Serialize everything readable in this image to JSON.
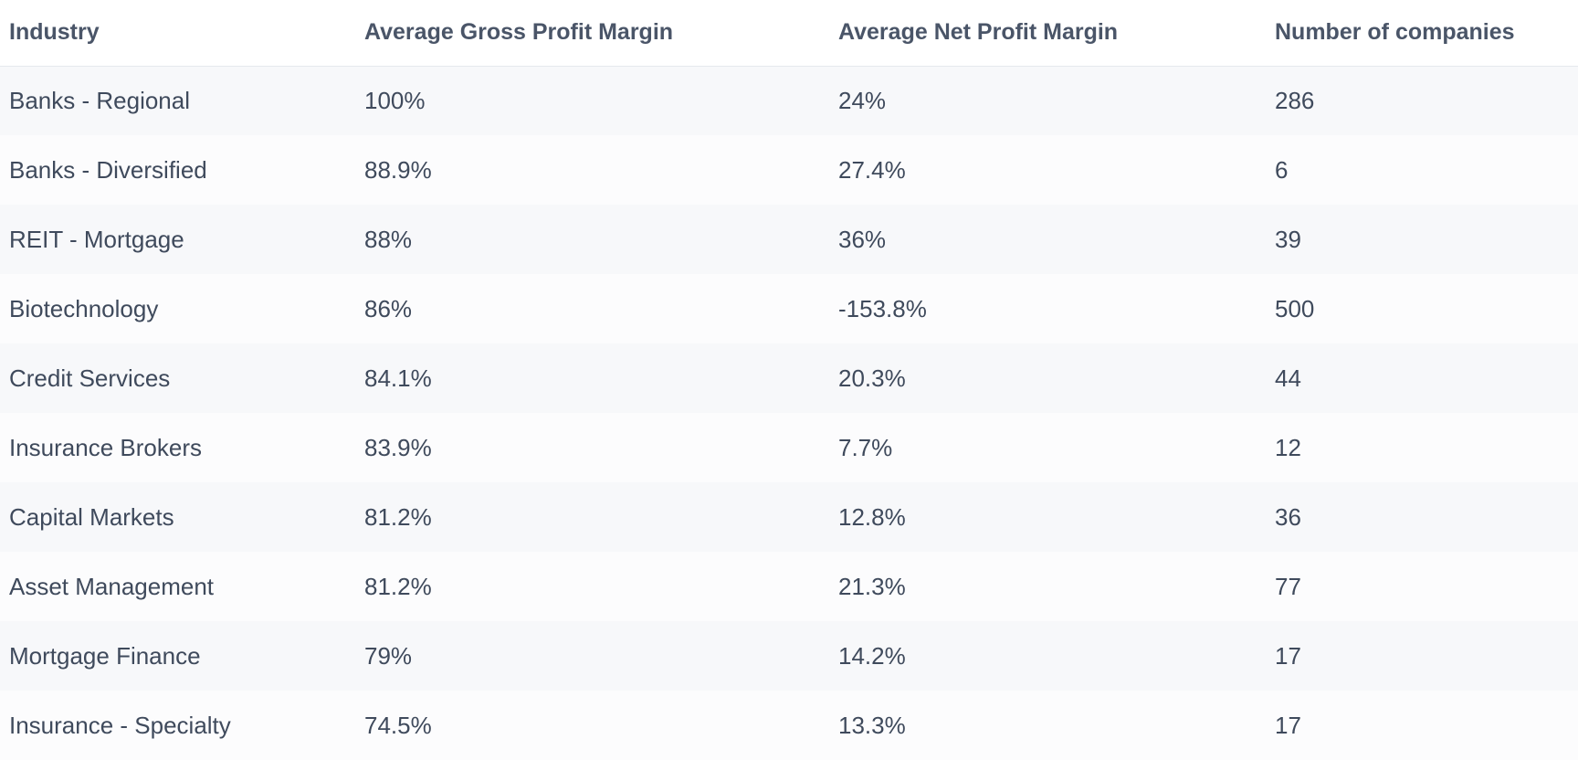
{
  "table": {
    "headers": [
      "Industry",
      "Average Gross Profit Margin",
      "Average Net Profit Margin",
      "Number of companies"
    ],
    "rows": [
      [
        "Banks - Regional",
        "100%",
        "24%",
        "286"
      ],
      [
        "Banks - Diversified",
        "88.9%",
        "27.4%",
        "6"
      ],
      [
        "REIT - Mortgage",
        "88%",
        "36%",
        "39"
      ],
      [
        "Biotechnology",
        "86%",
        "-153.8%",
        "500"
      ],
      [
        "Credit Services",
        "84.1%",
        "20.3%",
        "44"
      ],
      [
        "Insurance Brokers",
        "83.9%",
        "7.7%",
        "12"
      ],
      [
        "Capital Markets",
        "81.2%",
        "12.8%",
        "36"
      ],
      [
        "Asset Management",
        "81.2%",
        "21.3%",
        "77"
      ],
      [
        "Mortgage Finance",
        "79%",
        "14.2%",
        "17"
      ],
      [
        "Insurance - Specialty",
        "74.5%",
        "13.3%",
        "17"
      ]
    ]
  }
}
